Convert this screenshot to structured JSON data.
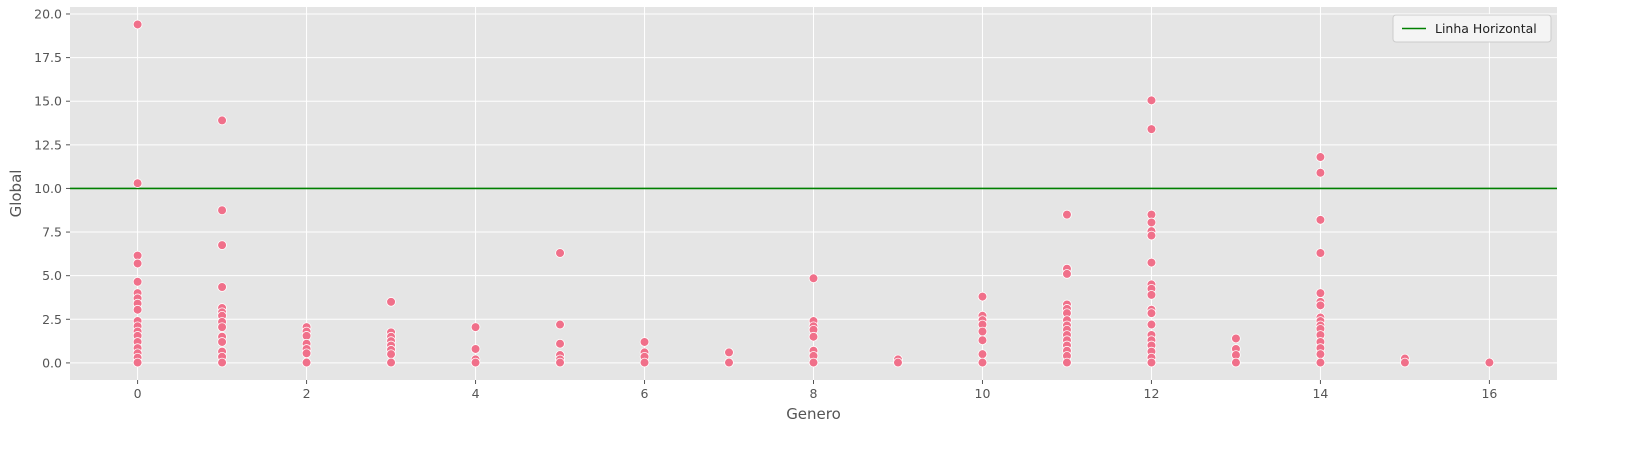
{
  "chart_data": {
    "type": "scatter",
    "title": "",
    "xlabel": "Genero",
    "ylabel": "Global",
    "xlim": [
      -0.8,
      16.8
    ],
    "ylim": [
      -0.98,
      20.4
    ],
    "xticks": [
      0,
      2,
      4,
      6,
      8,
      10,
      12,
      14,
      16
    ],
    "yticks": [
      0.0,
      2.5,
      5.0,
      7.5,
      10.0,
      12.5,
      15.0,
      17.5,
      20.0
    ],
    "ytick_labels": [
      "0.0",
      "2.5",
      "5.0",
      "7.5",
      "10.0",
      "12.5",
      "15.0",
      "17.5",
      "20.0"
    ],
    "grid": true,
    "legend_position": "top-right",
    "colors": {
      "background": "#e5e5e5",
      "grid": "#ffffff",
      "point_fill": "#f0708a",
      "point_edge": "#ffffff",
      "hline": "#008000",
      "text": "#555555"
    },
    "hline": {
      "y": 10.0,
      "label": "Linha Horizontal"
    },
    "points": [
      {
        "x": 0,
        "y": 19.4
      },
      {
        "x": 0,
        "y": 10.3
      },
      {
        "x": 0,
        "y": 6.15
      },
      {
        "x": 0,
        "y": 5.7
      },
      {
        "x": 0,
        "y": 4.65
      },
      {
        "x": 0,
        "y": 4.0
      },
      {
        "x": 0,
        "y": 3.7
      },
      {
        "x": 0,
        "y": 3.4
      },
      {
        "x": 0,
        "y": 3.05
      },
      {
        "x": 0,
        "y": 2.4
      },
      {
        "x": 0,
        "y": 2.1
      },
      {
        "x": 0,
        "y": 1.8
      },
      {
        "x": 0,
        "y": 1.55
      },
      {
        "x": 0,
        "y": 1.2
      },
      {
        "x": 0,
        "y": 0.85
      },
      {
        "x": 0,
        "y": 0.55
      },
      {
        "x": 0,
        "y": 0.3
      },
      {
        "x": 0,
        "y": 0.02
      },
      {
        "x": 1,
        "y": 13.9
      },
      {
        "x": 1,
        "y": 8.75
      },
      {
        "x": 1,
        "y": 6.75
      },
      {
        "x": 1,
        "y": 4.35
      },
      {
        "x": 1,
        "y": 3.15
      },
      {
        "x": 1,
        "y": 2.9
      },
      {
        "x": 1,
        "y": 2.7
      },
      {
        "x": 1,
        "y": 2.35
      },
      {
        "x": 1,
        "y": 2.05
      },
      {
        "x": 1,
        "y": 1.5
      },
      {
        "x": 1,
        "y": 1.2
      },
      {
        "x": 1,
        "y": 0.65
      },
      {
        "x": 1,
        "y": 0.35
      },
      {
        "x": 1,
        "y": 0.02
      },
      {
        "x": 2,
        "y": 2.05
      },
      {
        "x": 2,
        "y": 1.8
      },
      {
        "x": 2,
        "y": 1.55
      },
      {
        "x": 2,
        "y": 1.1
      },
      {
        "x": 2,
        "y": 0.8
      },
      {
        "x": 2,
        "y": 0.55
      },
      {
        "x": 2,
        "y": 0.02
      },
      {
        "x": 3,
        "y": 3.5
      },
      {
        "x": 3,
        "y": 1.75
      },
      {
        "x": 3,
        "y": 1.5
      },
      {
        "x": 3,
        "y": 1.25
      },
      {
        "x": 3,
        "y": 1.0
      },
      {
        "x": 3,
        "y": 0.75
      },
      {
        "x": 3,
        "y": 0.5
      },
      {
        "x": 3,
        "y": 0.02
      },
      {
        "x": 4,
        "y": 2.05
      },
      {
        "x": 4,
        "y": 0.8
      },
      {
        "x": 4,
        "y": 0.2
      },
      {
        "x": 4,
        "y": 0.02
      },
      {
        "x": 5,
        "y": 6.3
      },
      {
        "x": 5,
        "y": 2.2
      },
      {
        "x": 5,
        "y": 1.1
      },
      {
        "x": 5,
        "y": 0.45
      },
      {
        "x": 5,
        "y": 0.2
      },
      {
        "x": 5,
        "y": 0.02
      },
      {
        "x": 6,
        "y": 1.2
      },
      {
        "x": 6,
        "y": 0.6
      },
      {
        "x": 6,
        "y": 0.35
      },
      {
        "x": 6,
        "y": 0.02
      },
      {
        "x": 7,
        "y": 0.6
      },
      {
        "x": 7,
        "y": 0.02
      },
      {
        "x": 8,
        "y": 4.85
      },
      {
        "x": 8,
        "y": 2.4
      },
      {
        "x": 8,
        "y": 2.1
      },
      {
        "x": 8,
        "y": 1.9
      },
      {
        "x": 8,
        "y": 1.5
      },
      {
        "x": 8,
        "y": 0.7
      },
      {
        "x": 8,
        "y": 0.4
      },
      {
        "x": 8,
        "y": 0.02
      },
      {
        "x": 9,
        "y": 0.2
      },
      {
        "x": 9,
        "y": 0.02
      },
      {
        "x": 10,
        "y": 3.8
      },
      {
        "x": 10,
        "y": 2.7
      },
      {
        "x": 10,
        "y": 2.45
      },
      {
        "x": 10,
        "y": 2.2
      },
      {
        "x": 10,
        "y": 1.8
      },
      {
        "x": 10,
        "y": 1.3
      },
      {
        "x": 10,
        "y": 0.5
      },
      {
        "x": 10,
        "y": 0.02
      },
      {
        "x": 11,
        "y": 8.5
      },
      {
        "x": 11,
        "y": 5.4
      },
      {
        "x": 11,
        "y": 5.1
      },
      {
        "x": 11,
        "y": 3.35
      },
      {
        "x": 11,
        "y": 3.1
      },
      {
        "x": 11,
        "y": 2.85
      },
      {
        "x": 11,
        "y": 2.45
      },
      {
        "x": 11,
        "y": 2.15
      },
      {
        "x": 11,
        "y": 1.9
      },
      {
        "x": 11,
        "y": 1.6
      },
      {
        "x": 11,
        "y": 1.3
      },
      {
        "x": 11,
        "y": 1.0
      },
      {
        "x": 11,
        "y": 0.7
      },
      {
        "x": 11,
        "y": 0.4
      },
      {
        "x": 11,
        "y": 0.02
      },
      {
        "x": 12,
        "y": 15.05
      },
      {
        "x": 12,
        "y": 13.4
      },
      {
        "x": 12,
        "y": 8.5
      },
      {
        "x": 12,
        "y": 8.05
      },
      {
        "x": 12,
        "y": 7.55
      },
      {
        "x": 12,
        "y": 7.3
      },
      {
        "x": 12,
        "y": 5.75
      },
      {
        "x": 12,
        "y": 4.5
      },
      {
        "x": 12,
        "y": 4.25
      },
      {
        "x": 12,
        "y": 3.9
      },
      {
        "x": 12,
        "y": 3.05
      },
      {
        "x": 12,
        "y": 2.85
      },
      {
        "x": 12,
        "y": 2.2
      },
      {
        "x": 12,
        "y": 1.6
      },
      {
        "x": 12,
        "y": 1.3
      },
      {
        "x": 12,
        "y": 1.0
      },
      {
        "x": 12,
        "y": 0.65
      },
      {
        "x": 12,
        "y": 0.3
      },
      {
        "x": 12,
        "y": 0.02
      },
      {
        "x": 13,
        "y": 1.4
      },
      {
        "x": 13,
        "y": 0.8
      },
      {
        "x": 13,
        "y": 0.45
      },
      {
        "x": 13,
        "y": 0.02
      },
      {
        "x": 14,
        "y": 11.8
      },
      {
        "x": 14,
        "y": 10.9
      },
      {
        "x": 14,
        "y": 8.2
      },
      {
        "x": 14,
        "y": 6.3
      },
      {
        "x": 14,
        "y": 4.0
      },
      {
        "x": 14,
        "y": 3.5
      },
      {
        "x": 14,
        "y": 3.3
      },
      {
        "x": 14,
        "y": 2.6
      },
      {
        "x": 14,
        "y": 2.4
      },
      {
        "x": 14,
        "y": 2.15
      },
      {
        "x": 14,
        "y": 1.95
      },
      {
        "x": 14,
        "y": 1.6
      },
      {
        "x": 14,
        "y": 1.2
      },
      {
        "x": 14,
        "y": 0.85
      },
      {
        "x": 14,
        "y": 0.5
      },
      {
        "x": 14,
        "y": 0.02
      },
      {
        "x": 15,
        "y": 0.25
      },
      {
        "x": 15,
        "y": 0.02
      },
      {
        "x": 16,
        "y": 0.02
      }
    ]
  }
}
